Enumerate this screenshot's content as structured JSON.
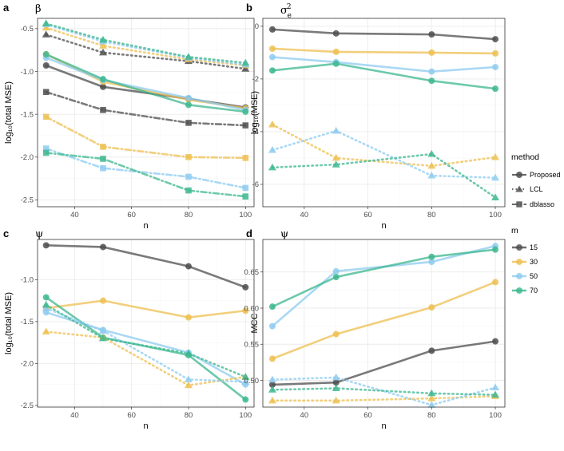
{
  "chart_data": [
    {
      "type": "line",
      "panel_label": "a",
      "title": "β",
      "xlabel": "n",
      "ylabel": "log₁₀(total MSE)",
      "x": [
        30,
        50,
        80,
        100
      ],
      "xlim": [
        27,
        103
      ],
      "ylim": [
        -2.58,
        -0.38
      ],
      "xticks": [
        "40",
        "60",
        "80",
        "100"
      ],
      "yticks": [
        "-0.5",
        "-1.0",
        "-1.5",
        "-2.0",
        "-2.5"
      ],
      "grid": true,
      "series": [
        {
          "method": "Proposed",
          "m": "15",
          "values": [
            -0.93,
            -1.18,
            -1.32,
            -1.42
          ]
        },
        {
          "method": "Proposed",
          "m": "30",
          "values": [
            -0.8,
            -1.12,
            -1.33,
            -1.43
          ]
        },
        {
          "method": "Proposed",
          "m": "50",
          "values": [
            -0.84,
            -1.1,
            -1.31,
            -1.45
          ]
        },
        {
          "method": "Proposed",
          "m": "70",
          "values": [
            -0.8,
            -1.09,
            -1.39,
            -1.47
          ]
        },
        {
          "method": "LCL",
          "m": "15",
          "values": [
            -0.57,
            -0.78,
            -0.88,
            -0.97
          ]
        },
        {
          "method": "LCL",
          "m": "30",
          "values": [
            -0.49,
            -0.7,
            -0.86,
            -0.93
          ]
        },
        {
          "method": "LCL",
          "m": "50",
          "values": [
            -0.45,
            -0.65,
            -0.84,
            -0.92
          ]
        },
        {
          "method": "LCL",
          "m": "70",
          "values": [
            -0.44,
            -0.63,
            -0.83,
            -0.9
          ]
        },
        {
          "method": "dblasso",
          "m": "15",
          "values": [
            -1.24,
            -1.45,
            -1.6,
            -1.63
          ]
        },
        {
          "method": "dblasso",
          "m": "30",
          "values": [
            -1.53,
            -1.88,
            -2.0,
            -2.01
          ]
        },
        {
          "method": "dblasso",
          "m": "50",
          "values": [
            -1.9,
            -2.13,
            -2.23,
            -2.36
          ]
        },
        {
          "method": "dblasso",
          "m": "70",
          "values": [
            -1.95,
            -2.02,
            -2.39,
            -2.46
          ]
        }
      ]
    },
    {
      "type": "line",
      "panel_label": "b",
      "title": "σ",
      "title_sub": "e",
      "title_sup": "2",
      "xlabel": "n",
      "ylabel": "log₁₀(MSE)",
      "x": [
        30,
        50,
        80,
        100
      ],
      "xlim": [
        27,
        103
      ],
      "ylim": [
        -6.85,
        0.3
      ],
      "xticks": [
        "40",
        "60",
        "80",
        "100"
      ],
      "yticks": [
        "0",
        "-2",
        "-4",
        "-6"
      ],
      "grid": true,
      "series": [
        {
          "method": "Proposed",
          "m": "15",
          "values": [
            -0.12,
            -0.27,
            -0.31,
            -0.49
          ]
        },
        {
          "method": "Proposed",
          "m": "30",
          "values": [
            -0.85,
            -0.97,
            -1.0,
            -1.03
          ]
        },
        {
          "method": "Proposed",
          "m": "50",
          "values": [
            -1.17,
            -1.36,
            -1.72,
            -1.55
          ]
        },
        {
          "method": "Proposed",
          "m": "70",
          "values": [
            -1.68,
            -1.42,
            -2.07,
            -2.37
          ]
        },
        {
          "method": "LCL",
          "m": "30",
          "values": [
            -3.73,
            -5.0,
            -5.3,
            -4.97
          ]
        },
        {
          "method": "LCL",
          "m": "50",
          "values": [
            -4.7,
            -3.97,
            -5.67,
            -5.75
          ]
        },
        {
          "method": "LCL",
          "m": "70",
          "values": [
            -5.36,
            -5.25,
            -4.85,
            -6.5
          ]
        }
      ]
    },
    {
      "type": "line",
      "panel_label": "c",
      "title": "ψ",
      "xlabel": "n",
      "ylabel": "log₁₀(total MSE)",
      "x": [
        30,
        50,
        80,
        100
      ],
      "xlim": [
        27,
        103
      ],
      "ylim": [
        -2.52,
        -0.52
      ],
      "xticks": [
        "40",
        "60",
        "80",
        "100"
      ],
      "yticks": [
        "-1.0",
        "-1.5",
        "-2.0",
        "-2.5"
      ],
      "grid": true,
      "series": [
        {
          "method": "Proposed",
          "m": "15",
          "values": [
            -0.59,
            -0.61,
            -0.84,
            -1.09
          ]
        },
        {
          "method": "Proposed",
          "m": "30",
          "values": [
            -1.34,
            -1.25,
            -1.45,
            -1.37
          ]
        },
        {
          "method": "Proposed",
          "m": "50",
          "values": [
            -1.39,
            -1.6,
            -1.87,
            -2.25
          ]
        },
        {
          "method": "Proposed",
          "m": "70",
          "values": [
            -1.21,
            -1.69,
            -1.9,
            -2.43
          ]
        },
        {
          "method": "LCL",
          "m": "30",
          "values": [
            -1.62,
            -1.69,
            -2.26,
            -2.16
          ]
        },
        {
          "method": "LCL",
          "m": "50",
          "values": [
            -1.34,
            -1.61,
            -2.19,
            -2.22
          ]
        },
        {
          "method": "LCL",
          "m": "70",
          "values": [
            -1.3,
            -1.7,
            -1.88,
            -2.16
          ]
        }
      ]
    },
    {
      "type": "line",
      "panel_label": "d",
      "title": "ψ",
      "xlabel": "n",
      "ylabel": "MCC",
      "x": [
        30,
        50,
        80,
        100
      ],
      "xlim": [
        27,
        103
      ],
      "ylim": [
        0.463,
        0.695
      ],
      "xticks": [
        "40",
        "60",
        "80",
        "100"
      ],
      "yticks": [
        "0.65",
        "0.60",
        "0.55",
        "0.50"
      ],
      "grid": true,
      "series": [
        {
          "method": "Proposed",
          "m": "15",
          "values": [
            0.494,
            0.497,
            0.541,
            0.554
          ]
        },
        {
          "method": "Proposed",
          "m": "30",
          "values": [
            0.53,
            0.564,
            0.601,
            0.636
          ]
        },
        {
          "method": "Proposed",
          "m": "50",
          "values": [
            0.575,
            0.651,
            0.664,
            0.686
          ]
        },
        {
          "method": "Proposed",
          "m": "70",
          "values": [
            0.602,
            0.643,
            0.671,
            0.681
          ]
        },
        {
          "method": "LCL",
          "m": "30",
          "values": [
            0.472,
            0.472,
            0.475,
            0.478
          ]
        },
        {
          "method": "LCL",
          "m": "50",
          "values": [
            0.501,
            0.504,
            0.466,
            0.49
          ]
        },
        {
          "method": "LCL",
          "m": "70",
          "values": [
            0.487,
            0.489,
            0.482,
            0.48
          ]
        }
      ]
    }
  ],
  "legend_method": {
    "title": "method",
    "items": [
      {
        "label": "Proposed",
        "shape": "circle",
        "dash": "solid"
      },
      {
        "label": "LCL",
        "shape": "triangle",
        "dash": "dotted"
      },
      {
        "label": "dblasso",
        "shape": "square",
        "dash": "dashdot"
      }
    ]
  },
  "legend_m": {
    "title": "m",
    "items": [
      {
        "label": "15",
        "color": "#4d4d4d"
      },
      {
        "label": "30",
        "color": "#edbf50"
      },
      {
        "label": "50",
        "color": "#8ecbf0"
      },
      {
        "label": "70",
        "color": "#3cb78f"
      }
    ]
  },
  "colors": {
    "15": "#4d4d4d",
    "30": "#edbf50",
    "50": "#8ecbf0",
    "70": "#3cb78f"
  }
}
